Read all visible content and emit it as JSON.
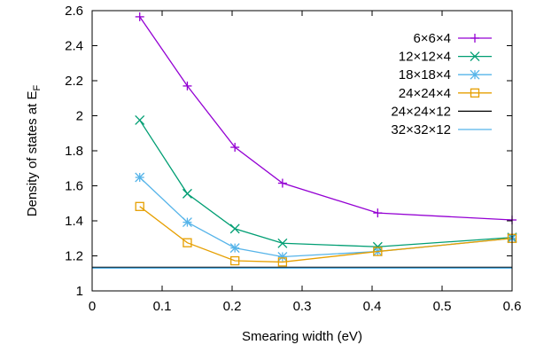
{
  "chart_data": {
    "type": "line",
    "xlabel": "Smearing width (eV)",
    "ylabel_main": "Density of states at E",
    "ylabel_sub": "F",
    "xlim": [
      0,
      0.6
    ],
    "ylim": [
      1,
      2.6
    ],
    "x_ticks": [
      0,
      0.1,
      0.2,
      0.3,
      0.4,
      0.5,
      0.6
    ],
    "x_tick_labels": [
      "0",
      "0.1",
      "0.2",
      "0.3",
      "0.4",
      "0.5",
      "0.6"
    ],
    "y_ticks": [
      1,
      1.2,
      1.4,
      1.6,
      1.8,
      2,
      2.2,
      2.4,
      2.6
    ],
    "y_tick_labels": [
      "1",
      "1.2",
      "1.4",
      "1.6",
      "1.8",
      "2",
      "2.2",
      "2.4",
      "2.6"
    ],
    "grid": false,
    "legend_position": "top-right",
    "series": [
      {
        "name": "6×6×4",
        "color": "#9400d3",
        "marker": "plus",
        "x": [
          0.068,
          0.136,
          0.204,
          0.272,
          0.408,
          0.6
        ],
        "y": [
          2.565,
          2.17,
          1.82,
          1.615,
          1.445,
          1.405
        ]
      },
      {
        "name": "12×12×4",
        "color": "#009e73",
        "marker": "cross",
        "x": [
          0.068,
          0.136,
          0.204,
          0.272,
          0.408,
          0.6
        ],
        "y": [
          1.975,
          1.555,
          1.355,
          1.272,
          1.252,
          1.305
        ]
      },
      {
        "name": "18×18×4",
        "color": "#56b4e9",
        "marker": "star",
        "x": [
          0.068,
          0.136,
          0.204,
          0.272,
          0.408,
          0.6
        ],
        "y": [
          1.648,
          1.392,
          1.245,
          1.195,
          1.225,
          1.3
        ]
      },
      {
        "name": "24×24×4",
        "color": "#e69f00",
        "marker": "square",
        "x": [
          0.068,
          0.136,
          0.204,
          0.272,
          0.408,
          0.6
        ],
        "y": [
          1.482,
          1.275,
          1.172,
          1.165,
          1.225,
          1.3
        ]
      },
      {
        "name": "24×24×12",
        "color": "#000000",
        "marker": "none",
        "x": [
          0,
          0.6
        ],
        "y": [
          1.135,
          1.135
        ]
      },
      {
        "name": "32×32×12",
        "color": "#56b4e9",
        "marker": "none",
        "x": [
          0,
          0.6
        ],
        "y": [
          1.13,
          1.13
        ]
      }
    ]
  }
}
